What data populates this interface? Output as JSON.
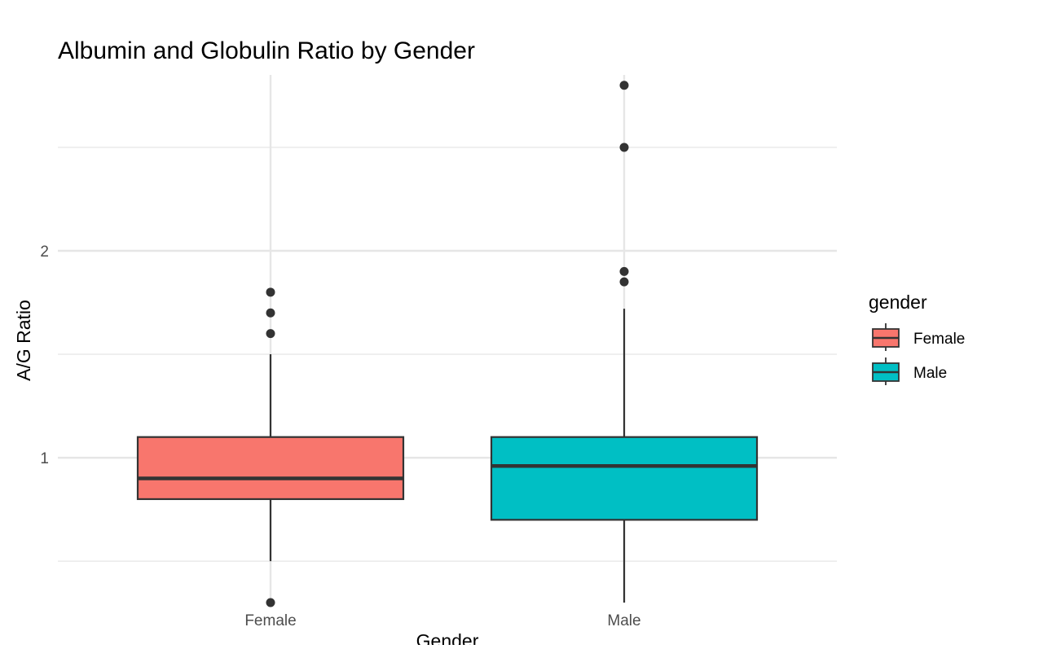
{
  "chart_data": {
    "type": "boxplot",
    "title": "Albumin and Globulin Ratio by Gender",
    "xlabel": "Gender",
    "ylabel": "A/G Ratio",
    "ylim": [
      0.3,
      2.85
    ],
    "y_ticks": [
      1,
      2
    ],
    "y_ticks_labels": [
      "1",
      "2"
    ],
    "y_minor_grid": [
      0.5,
      1.5,
      2.5
    ],
    "grid": true,
    "legend": {
      "title": "gender",
      "placement": "right",
      "entries": [
        "Female",
        "Male"
      ]
    },
    "categories": [
      "Female",
      "Male"
    ],
    "series": [
      {
        "name": "Female",
        "color": "#F8766D",
        "whisker_low": 0.5,
        "q1": 0.8,
        "median": 0.9,
        "q3": 1.1,
        "whisker_high": 1.5,
        "outliers": [
          0.3,
          1.6,
          1.7,
          1.8
        ]
      },
      {
        "name": "Male",
        "color": "#00BFC4",
        "whisker_low": 0.3,
        "q1": 0.7,
        "median": 0.96,
        "q3": 1.1,
        "whisker_high": 1.72,
        "outliers": [
          1.85,
          1.9,
          2.5,
          2.8
        ]
      }
    ]
  }
}
